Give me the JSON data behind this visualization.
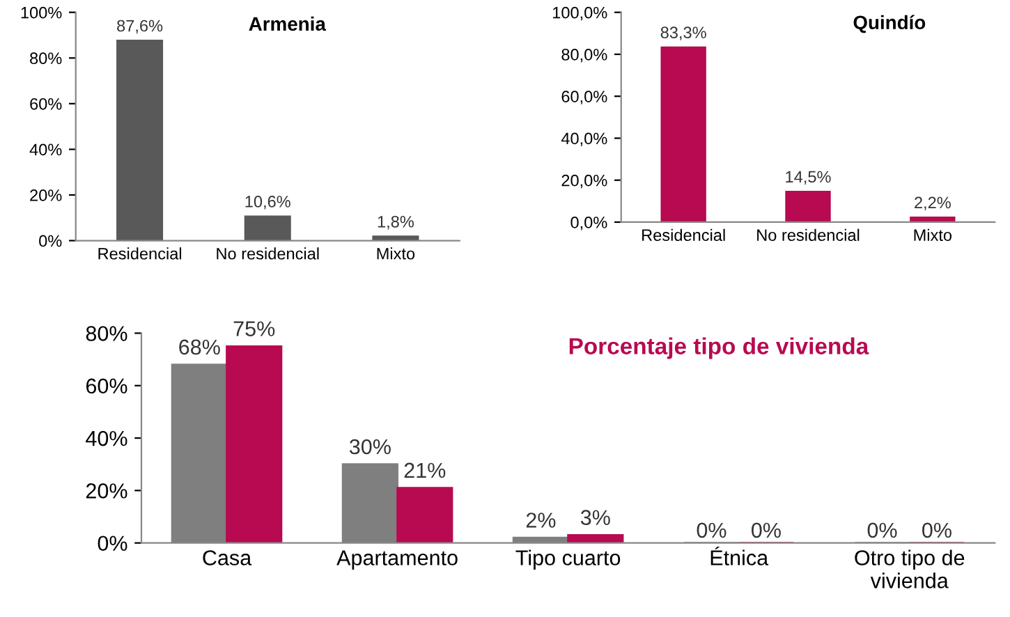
{
  "chart_data": [
    {
      "type": "bar",
      "title": "Armenia",
      "categories": [
        "Residencial",
        "No residencial",
        "Mixto"
      ],
      "series": [
        {
          "color": "#595959",
          "values": [
            87.6,
            10.6,
            1.8
          ],
          "value_labels": [
            "87,6%",
            "10,6%",
            "1,8%"
          ]
        }
      ],
      "ylim": [
        0,
        100
      ],
      "yticks": [
        {
          "value": 0,
          "label": "0%"
        },
        {
          "value": 20,
          "label": "20%"
        },
        {
          "value": 40,
          "label": "40%"
        },
        {
          "value": 60,
          "label": "60%"
        },
        {
          "value": 80,
          "label": "80%"
        },
        {
          "value": 100,
          "label": "100%"
        }
      ],
      "grid": false,
      "legend": false
    },
    {
      "type": "bar",
      "title": "Quindío",
      "categories": [
        "Residencial",
        "No residencial",
        "Mixto"
      ],
      "series": [
        {
          "color": "#b80a50",
          "values": [
            83.3,
            14.5,
            2.2
          ],
          "value_labels": [
            "83,3%",
            "14,5%",
            "2,2%"
          ]
        }
      ],
      "ylim": [
        0,
        100
      ],
      "yticks": [
        {
          "value": 0,
          "label": "0,0%"
        },
        {
          "value": 20,
          "label": "20,0%"
        },
        {
          "value": 40,
          "label": "40,0%"
        },
        {
          "value": 60,
          "label": "60,0%"
        },
        {
          "value": 80,
          "label": "80,0%"
        },
        {
          "value": 100,
          "label": "100,0%"
        }
      ],
      "grid": false,
      "legend": false
    },
    {
      "type": "bar",
      "title": "Porcentaje tipo de vivienda",
      "categories": [
        "Casa",
        "Apartamento",
        "Tipo cuarto",
        "Étnica",
        "Otro tipo de\nvivienda"
      ],
      "series": [
        {
          "color": "#7f7f7f",
          "values": [
            68,
            30,
            2,
            0,
            0
          ],
          "value_labels": [
            "68%",
            "30%",
            "2%",
            "0%",
            "0%"
          ]
        },
        {
          "color": "#b80a50",
          "values": [
            75,
            21,
            3,
            0,
            0
          ],
          "value_labels": [
            "75%",
            "21%",
            "3%",
            "0%",
            "0%"
          ]
        }
      ],
      "ylim": [
        0,
        80
      ],
      "yticks": [
        {
          "value": 0,
          "label": "0%"
        },
        {
          "value": 20,
          "label": "20%"
        },
        {
          "value": 40,
          "label": "40%"
        },
        {
          "value": 60,
          "label": "60%"
        },
        {
          "value": 80,
          "label": "80%"
        }
      ],
      "grid": false,
      "legend": false
    }
  ]
}
